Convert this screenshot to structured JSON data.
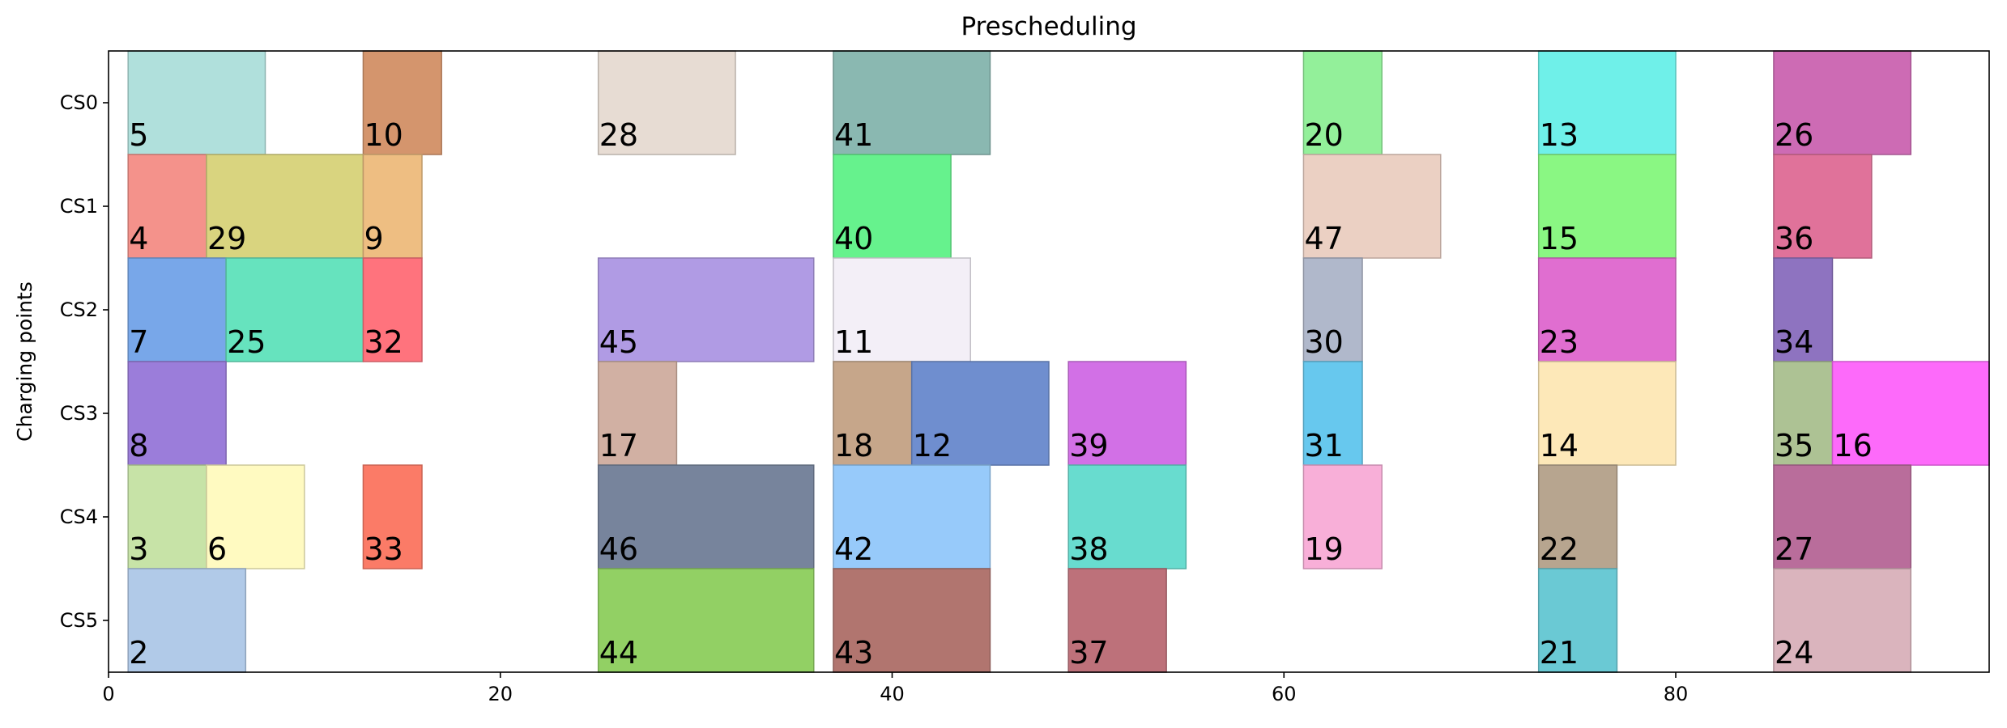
{
  "chart_data": {
    "type": "gantt",
    "title": "Prescheduling",
    "xlabel": "",
    "ylabel": "Charging points",
    "xlim": [
      0,
      96
    ],
    "x_ticks": [
      0,
      20,
      40,
      60,
      80
    ],
    "rows": [
      "CS0",
      "CS1",
      "CS2",
      "CS3",
      "CS4",
      "CS5"
    ],
    "grid": false,
    "tasks": [
      {
        "label": "5",
        "row": 0,
        "start": 1,
        "end": 8,
        "color": "#b0e0dc"
      },
      {
        "label": "10",
        "row": 0,
        "start": 13,
        "end": 17,
        "color": "#d4956d"
      },
      {
        "label": "28",
        "row": 0,
        "start": 25,
        "end": 32,
        "color": "#e7dcd3"
      },
      {
        "label": "41",
        "row": 0,
        "start": 37,
        "end": 45,
        "color": "#8ab8b1"
      },
      {
        "label": "20",
        "row": 0,
        "start": 61,
        "end": 65,
        "color": "#93f09a"
      },
      {
        "label": "13",
        "row": 0,
        "start": 73,
        "end": 80,
        "color": "#6ff0e9"
      },
      {
        "label": "26",
        "row": 0,
        "start": 85,
        "end": 92,
        "color": "#cd6bb4"
      },
      {
        "label": "4",
        "row": 1,
        "start": 1,
        "end": 5,
        "color": "#f4928b"
      },
      {
        "label": "29",
        "row": 1,
        "start": 5,
        "end": 13,
        "color": "#d9d47f"
      },
      {
        "label": "9",
        "row": 1,
        "start": 13,
        "end": 16,
        "color": "#eebe82"
      },
      {
        "label": "40",
        "row": 1,
        "start": 37,
        "end": 43,
        "color": "#66f28d"
      },
      {
        "label": "47",
        "row": 1,
        "start": 61,
        "end": 68,
        "color": "#ebd0c3"
      },
      {
        "label": "15",
        "row": 1,
        "start": 73,
        "end": 80,
        "color": "#8af783"
      },
      {
        "label": "36",
        "row": 1,
        "start": 85,
        "end": 90,
        "color": "#e0729a"
      },
      {
        "label": "7",
        "row": 2,
        "start": 1,
        "end": 6,
        "color": "#78a7e9"
      },
      {
        "label": "25",
        "row": 2,
        "start": 6,
        "end": 13,
        "color": "#66e3be"
      },
      {
        "label": "32",
        "row": 2,
        "start": 13,
        "end": 16,
        "color": "#ff737d"
      },
      {
        "label": "45",
        "row": 2,
        "start": 25,
        "end": 36,
        "color": "#b09be4"
      },
      {
        "label": "11",
        "row": 2,
        "start": 37,
        "end": 44,
        "color": "#f3eff7"
      },
      {
        "label": "30",
        "row": 2,
        "start": 61,
        "end": 64,
        "color": "#b0b8cb"
      },
      {
        "label": "23",
        "row": 2,
        "start": 73,
        "end": 80,
        "color": "#e06ed0"
      },
      {
        "label": "34",
        "row": 2,
        "start": 85,
        "end": 88,
        "color": "#8e73c0"
      },
      {
        "label": "8",
        "row": 3,
        "start": 1,
        "end": 6,
        "color": "#9b7dda"
      },
      {
        "label": "17",
        "row": 3,
        "start": 25,
        "end": 29,
        "color": "#d1b0a3"
      },
      {
        "label": "18",
        "row": 3,
        "start": 37,
        "end": 41,
        "color": "#c6a68a"
      },
      {
        "label": "12",
        "row": 3,
        "start": 41,
        "end": 48,
        "color": "#6f8ecf"
      },
      {
        "label": "39",
        "row": 3,
        "start": 49,
        "end": 55,
        "color": "#d270e6"
      },
      {
        "label": "31",
        "row": 3,
        "start": 61,
        "end": 64,
        "color": "#67c8ee"
      },
      {
        "label": "14",
        "row": 3,
        "start": 73,
        "end": 80,
        "color": "#fde8b8"
      },
      {
        "label": "35",
        "row": 3,
        "start": 85,
        "end": 88,
        "color": "#adc294"
      },
      {
        "label": "16",
        "row": 3,
        "start": 88,
        "end": 96,
        "color": "#fd6afa"
      },
      {
        "label": "3",
        "row": 4,
        "start": 1,
        "end": 5,
        "color": "#c7e3a7"
      },
      {
        "label": "6",
        "row": 4,
        "start": 5,
        "end": 10,
        "color": "#fffac1"
      },
      {
        "label": "33",
        "row": 4,
        "start": 13,
        "end": 16,
        "color": "#fb7b67"
      },
      {
        "label": "46",
        "row": 4,
        "start": 25,
        "end": 36,
        "color": "#77849c"
      },
      {
        "label": "42",
        "row": 4,
        "start": 37,
        "end": 45,
        "color": "#97cafa"
      },
      {
        "label": "38",
        "row": 4,
        "start": 49,
        "end": 55,
        "color": "#68dccf"
      },
      {
        "label": "19",
        "row": 4,
        "start": 61,
        "end": 65,
        "color": "#f8afd8"
      },
      {
        "label": "22",
        "row": 4,
        "start": 73,
        "end": 77,
        "color": "#b7a58f"
      },
      {
        "label": "27",
        "row": 4,
        "start": 85,
        "end": 92,
        "color": "#b96d9b"
      },
      {
        "label": "2",
        "row": 5,
        "start": 1,
        "end": 7,
        "color": "#b1cae8"
      },
      {
        "label": "44",
        "row": 5,
        "start": 25,
        "end": 36,
        "color": "#92d064"
      },
      {
        "label": "43",
        "row": 5,
        "start": 37,
        "end": 45,
        "color": "#b1756f"
      },
      {
        "label": "37",
        "row": 5,
        "start": 49,
        "end": 54,
        "color": "#bd717a"
      },
      {
        "label": "21",
        "row": 5,
        "start": 73,
        "end": 77,
        "color": "#6ac9d4"
      },
      {
        "label": "24",
        "row": 5,
        "start": 85,
        "end": 92,
        "color": "#dab4bd"
      }
    ]
  }
}
